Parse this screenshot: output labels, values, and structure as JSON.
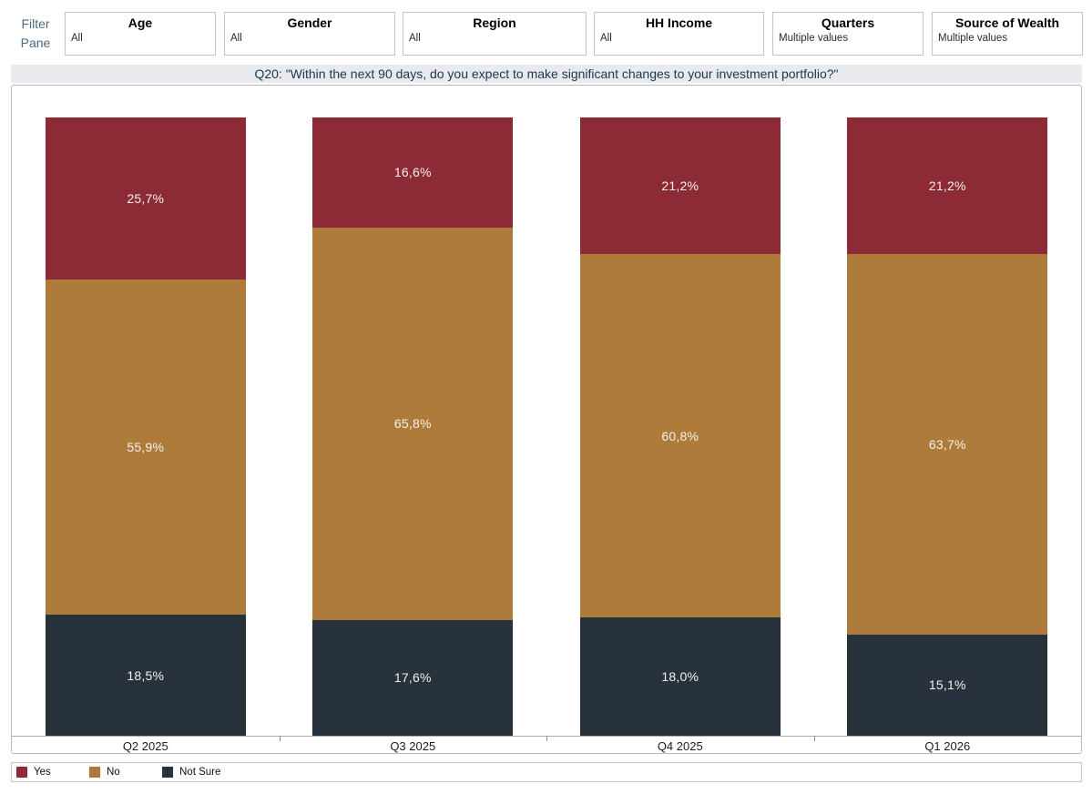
{
  "filter_pane": {
    "label_line1": "Filter",
    "label_line2": "Pane"
  },
  "filters": {
    "items": [
      {
        "label": "Age",
        "value": "All"
      },
      {
        "label": "Gender",
        "value": "All"
      },
      {
        "label": "Region",
        "value": "All"
      },
      {
        "label": "HH Income",
        "value": "All"
      },
      {
        "label": "Quarters",
        "value": "Multiple values"
      },
      {
        "label": "Source of Wealth",
        "value": "Multiple values"
      }
    ]
  },
  "title_bar": {
    "text": "Q20: \"Within the next 90 days, do you expect to make significant changes to your investment portfolio?\""
  },
  "chart_data": {
    "type": "bar",
    "subtype": "stacked-100-percent",
    "categories": [
      "Q2 2025",
      "Q3 2025",
      "Q4 2025",
      "Q1 2026"
    ],
    "series": [
      {
        "name": "Yes",
        "color": "#8c2b35",
        "values": [
          25.7,
          16.6,
          21.2,
          21.2
        ]
      },
      {
        "name": "No",
        "color": "#ae7b3a",
        "values": [
          55.9,
          65.8,
          60.8,
          63.7
        ]
      },
      {
        "name": "Not Sure",
        "color": "#28323c",
        "values": [
          18.5,
          17.6,
          18.0,
          15.1
        ]
      }
    ],
    "stack_order": "top-to-bottom",
    "decimal_separator": ",",
    "value_label_suffix": "%",
    "ylim": [
      0,
      100
    ],
    "gridlines": false,
    "y_axis_labels": false,
    "legend_position": "bottom-left"
  },
  "colors": {
    "title_bar_background": "#e8eaee",
    "title_text": "#16394e",
    "filter_pane_label_text": "#4a6a80",
    "bar_value_label_text": "#f4f1ea"
  }
}
